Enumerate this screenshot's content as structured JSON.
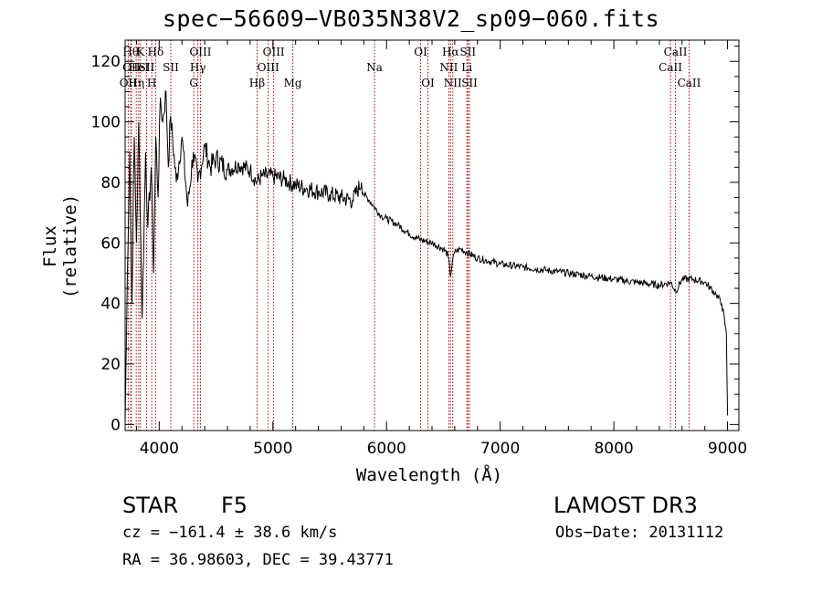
{
  "chart_data": {
    "type": "line",
    "title": "spec−56609−VB035N38V2_sp09−060.fits",
    "xlabel": "Wavelength (Å)",
    "ylabel": "Flux (relative)",
    "xlim": [
      3700,
      9100
    ],
    "ylim": [
      -2,
      127
    ],
    "xticks": [
      4000,
      5000,
      6000,
      7000,
      8000,
      9000
    ],
    "yticks": [
      0,
      20,
      40,
      60,
      80,
      100,
      120
    ],
    "series": [
      {
        "name": "flux",
        "x": [
          3700,
          3720,
          3740,
          3760,
          3780,
          3800,
          3820,
          3850,
          3880,
          3900,
          3930,
          3950,
          3970,
          3990,
          4010,
          4030,
          4060,
          4080,
          4100,
          4150,
          4200,
          4250,
          4300,
          4340,
          4400,
          4450,
          4500,
          4600,
          4700,
          4800,
          4860,
          4900,
          5000,
          5100,
          5200,
          5300,
          5400,
          5500,
          5600,
          5700,
          5780,
          5800,
          5850,
          5890,
          5950,
          6000,
          6100,
          6200,
          6300,
          6400,
          6500,
          6540,
          6563,
          6580,
          6600,
          6650,
          6700,
          6800,
          6900,
          7000,
          7200,
          7400,
          7600,
          7800,
          8000,
          8200,
          8400,
          8500,
          8545,
          8600,
          8700,
          8800,
          8850,
          8900,
          8950,
          8990,
          9000
        ],
        "values": [
          0,
          50,
          90,
          40,
          95,
          60,
          100,
          35,
          90,
          65,
          85,
          50,
          95,
          75,
          108,
          100,
          110,
          85,
          102,
          80,
          95,
          72,
          90,
          80,
          92,
          85,
          88,
          84,
          86,
          84,
          80,
          82,
          82,
          81,
          79,
          78,
          77,
          76,
          75,
          74,
          80,
          76,
          74,
          72,
          69,
          68,
          66,
          63,
          61,
          60,
          58,
          56,
          49,
          54,
          57,
          58,
          57,
          55,
          54,
          53,
          52,
          51,
          50,
          49,
          48,
          47,
          46,
          47,
          44,
          48,
          48,
          47,
          45,
          43,
          40,
          30,
          3
        ]
      }
    ],
    "lines": [
      {
        "w": 3727,
        "row": 3,
        "label": "OII"
      },
      {
        "w": 3750,
        "row": 1,
        "label": "Hθ"
      },
      {
        "w": 3755,
        "row": 2,
        "label": "OII"
      },
      {
        "w": 3798,
        "row": 3,
        "label": "Hη"
      },
      {
        "w": 3820,
        "row": 2,
        "label": "HeI"
      },
      {
        "w": 3835,
        "row": 1,
        "label": "K"
      },
      {
        "w": 3889,
        "row": 2,
        "label": "SII"
      },
      {
        "w": 3934,
        "row": 3,
        "label": "H"
      },
      {
        "w": 3968,
        "row": 1,
        "label": "Hδ"
      },
      {
        "w": 4102,
        "row": 2,
        "label": "SII"
      },
      {
        "w": 4304,
        "row": 3,
        "label": "G"
      },
      {
        "w": 4340,
        "row": 2,
        "label": "Hγ"
      },
      {
        "w": 4363,
        "row": 1,
        "label": "OIII"
      },
      {
        "w": 4861,
        "row": 3,
        "label": "Hβ"
      },
      {
        "w": 4959,
        "row": 2,
        "label": "OIII"
      },
      {
        "w": 5007,
        "row": 1,
        "label": "OIII"
      },
      {
        "w": 5175,
        "row": 3,
        "label": "Mg"
      },
      {
        "w": 5894,
        "row": 2,
        "label": "Na"
      },
      {
        "w": 6300,
        "row": 1,
        "label": "OI"
      },
      {
        "w": 6364,
        "row": 3,
        "label": "OI"
      },
      {
        "w": 6548,
        "row": 2,
        "label": "NII"
      },
      {
        "w": 6563,
        "row": 1,
        "label": "Hα"
      },
      {
        "w": 6583,
        "row": 3,
        "label": "NII"
      },
      {
        "w": 6707,
        "row": 2,
        "label": "Li"
      },
      {
        "w": 6716,
        "row": 1,
        "label": "SII"
      },
      {
        "w": 6730,
        "row": 3,
        "label": "SII"
      },
      {
        "w": 8498,
        "row": 2,
        "label": "CaII"
      },
      {
        "w": 8542,
        "row": 1,
        "label": "CaII"
      },
      {
        "w": 8662,
        "row": 3,
        "label": "CaII"
      }
    ]
  },
  "info": {
    "obj_class": "STAR",
    "subclass": "F5",
    "survey": "LAMOST DR3",
    "cz": "cz = −161.4 ± 38.6 km/s",
    "obs_date": "Obs−Date: 20131112",
    "radec": "RA =  36.98603, DEC =  39.43771"
  }
}
